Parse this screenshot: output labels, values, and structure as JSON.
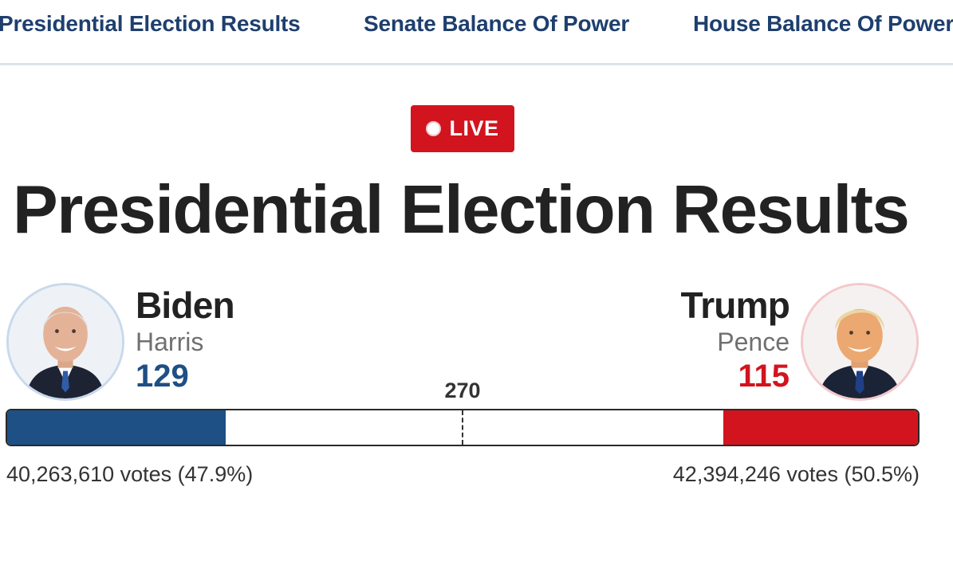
{
  "nav": {
    "items": [
      "Presidential Election Results",
      "Senate Balance Of Power",
      "House Balance Of Power"
    ]
  },
  "live_badge": {
    "label": "LIVE",
    "icon": "live-dot-icon"
  },
  "page_title": "Presidential Election Results",
  "threshold": {
    "label": "270",
    "value": 270
  },
  "electoral_total": 538,
  "candidates": {
    "dem": {
      "name": "Biden",
      "running_mate": "Harris",
      "electoral_votes_label": "129",
      "electoral_votes": 129,
      "popular_votes_label": "40,263,610 votes (47.9%)",
      "color": "#1e4f85"
    },
    "rep": {
      "name": "Trump",
      "running_mate": "Pence",
      "electoral_votes_label": "115",
      "electoral_votes": 115,
      "popular_votes_label": "42,394,246 votes (50.5%)",
      "color": "#d2141e"
    }
  },
  "colors": {
    "nav_text": "#1e3f6e",
    "live_badge": "#d2141e",
    "dem": "#1e4f85",
    "rep": "#d2141e",
    "title": "#222222"
  }
}
